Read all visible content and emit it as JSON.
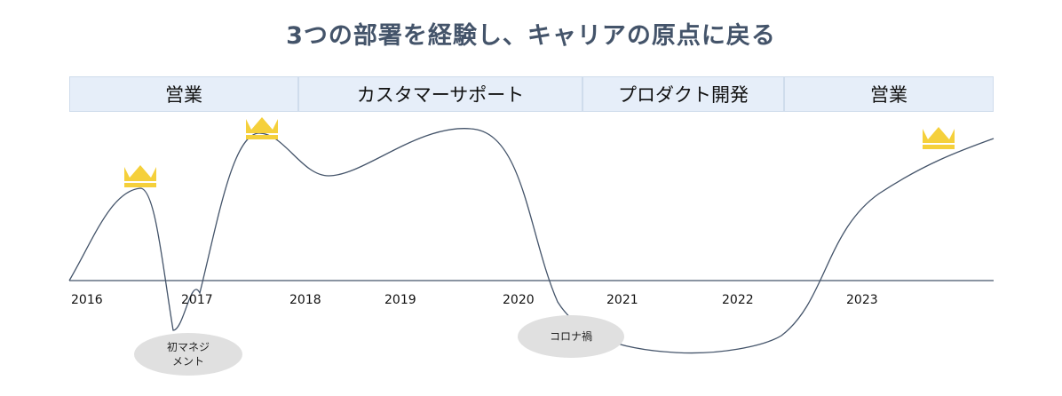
{
  "title": "3つの部署を経験し、キャリアの原点に戻る",
  "phases": [
    {
      "label": "営業"
    },
    {
      "label": "カスタマーサポート"
    },
    {
      "label": "プロダクト開発"
    },
    {
      "label": "営業"
    }
  ],
  "years": [
    "2016",
    "2017",
    "2018",
    "2019",
    "2020",
    "2021",
    "2022",
    "2023"
  ],
  "events": [
    {
      "label": "初マネジ\nメント"
    },
    {
      "label": "コロナ禍"
    }
  ],
  "colors": {
    "band": "#e6eef9",
    "band_border": "#cfdcec",
    "curve": "#44546a",
    "crown": "#f5d03b",
    "bubble": "#e0e0e0"
  },
  "icons": [
    "crown-icon"
  ]
}
